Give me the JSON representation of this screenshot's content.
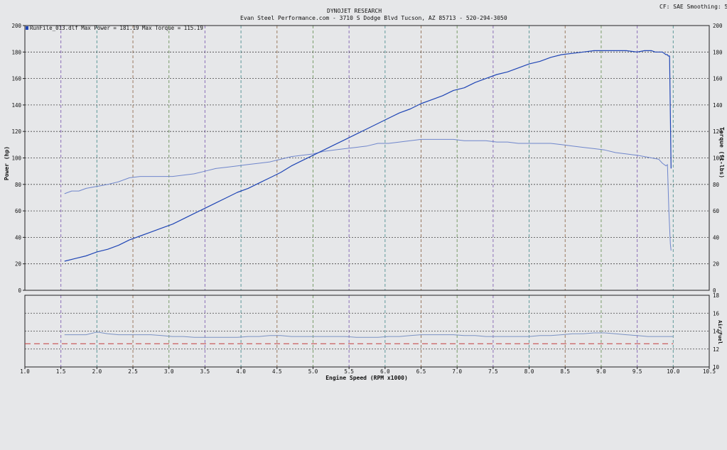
{
  "header": {
    "title": "DYNOJET RESEARCH",
    "subtitle": "Evan Steel Performance.com - 3710 S Dodge Blvd  Tucson, AZ  85713 - 520-294-3050",
    "settings": "CF: SAE   Smoothing: 5"
  },
  "legend": {
    "text": "RunFile_013.dlf Max Power = 181.19    Max Torque = 115.19"
  },
  "colors": {
    "power": "#1f45b5",
    "torque": "#6f86cc",
    "afr": "#7a92c4",
    "afr_target": "#c43c3c",
    "grid": "#444444",
    "rpm_lines": [
      "#7a9d6a",
      "#8c6fb8",
      "#5f9a9a",
      "#9a7a60"
    ]
  },
  "chart_data": [
    {
      "type": "line",
      "title": "",
      "ylabel": "Power (hp)",
      "ylabel_right": "Torque (ft-lbs)",
      "xlim": [
        1.0,
        10.5
      ],
      "ylim": [
        0,
        200
      ],
      "ylim_right": [
        0,
        200
      ],
      "x_ticks": [
        "1.0",
        "1.5",
        "2.0",
        "2.5",
        "3.0",
        "3.5",
        "4.0",
        "4.5",
        "5.0",
        "5.5",
        "6.0",
        "6.5",
        "7.0",
        "7.5",
        "8.0",
        "8.5",
        "9.0",
        "9.5",
        "10.0",
        "10.5"
      ],
      "y_ticks": [
        "0",
        "20",
        "40",
        "60",
        "80",
        "100",
        "120",
        "140",
        "160",
        "180",
        "200"
      ],
      "y_ticks_right": [
        "0",
        "20",
        "40",
        "60",
        "80",
        "100",
        "120",
        "140",
        "160",
        "180",
        "200"
      ],
      "grid": true,
      "legend_position": "top-left",
      "series": [
        {
          "name": "Power",
          "x": [
            1.55,
            1.7,
            1.85,
            2.0,
            2.15,
            2.3,
            2.45,
            2.6,
            2.75,
            2.9,
            3.05,
            3.2,
            3.35,
            3.5,
            3.65,
            3.8,
            3.95,
            4.1,
            4.25,
            4.4,
            4.55,
            4.7,
            4.85,
            5.0,
            5.15,
            5.3,
            5.45,
            5.6,
            5.75,
            5.9,
            6.05,
            6.2,
            6.35,
            6.5,
            6.65,
            6.8,
            6.95,
            7.1,
            7.25,
            7.4,
            7.55,
            7.7,
            7.85,
            8.0,
            8.15,
            8.3,
            8.45,
            8.6,
            8.75,
            8.9,
            9.05,
            9.2,
            9.35,
            9.5,
            9.6,
            9.7,
            9.75,
            9.85,
            9.9,
            9.92,
            9.93,
            9.95,
            9.97
          ],
          "y": [
            22,
            24,
            26,
            29,
            31,
            34,
            38,
            41,
            44,
            47,
            50,
            54,
            58,
            62,
            66,
            70,
            74,
            77,
            81,
            85,
            89,
            94,
            98,
            102,
            106,
            110,
            114,
            118,
            122,
            126,
            130,
            134,
            137,
            141,
            144,
            147,
            151,
            153,
            157,
            160,
            163,
            165,
            168,
            171,
            173,
            176,
            178,
            179,
            180,
            181,
            181,
            181,
            181,
            180,
            181,
            181,
            180,
            180,
            178,
            178,
            177,
            177,
            92
          ]
        },
        {
          "name": "Torque",
          "x": [
            1.55,
            1.65,
            1.75,
            1.85,
            1.95,
            2.05,
            2.15,
            2.3,
            2.45,
            2.6,
            2.75,
            2.9,
            3.05,
            3.2,
            3.35,
            3.5,
            3.65,
            3.8,
            3.95,
            4.1,
            4.25,
            4.4,
            4.55,
            4.7,
            4.85,
            5.0,
            5.15,
            5.3,
            5.45,
            5.6,
            5.75,
            5.9,
            6.05,
            6.2,
            6.35,
            6.5,
            6.65,
            6.8,
            6.95,
            7.1,
            7.25,
            7.4,
            7.55,
            7.7,
            7.85,
            8.0,
            8.15,
            8.3,
            8.45,
            8.6,
            8.75,
            8.9,
            9.05,
            9.2,
            9.35,
            9.5,
            9.6,
            9.7,
            9.8,
            9.85,
            9.9,
            9.92,
            9.94,
            9.96,
            9.97
          ],
          "y": [
            73,
            75,
            75,
            77,
            78,
            79,
            80,
            82,
            85,
            86,
            86,
            86,
            86,
            87,
            88,
            90,
            92,
            93,
            94,
            95,
            96,
            97,
            99,
            101,
            102,
            103,
            105,
            106,
            107,
            108,
            109,
            111,
            111,
            112,
            113,
            114,
            114,
            114,
            114,
            113,
            113,
            113,
            112,
            112,
            111,
            111,
            111,
            111,
            110,
            109,
            108,
            107,
            106,
            104,
            103,
            102,
            101,
            100,
            99,
            96,
            94,
            95,
            60,
            35,
            30
          ]
        }
      ]
    },
    {
      "type": "line",
      "title": "",
      "xlabel": "Engine Speed (RPM x1000)",
      "ylabel": "",
      "ylabel_right": "Air/Fuel",
      "xlim": [
        1.0,
        10.5
      ],
      "ylim": [
        10,
        18
      ],
      "y_ticks_right": [
        "10",
        "12",
        "14",
        "16",
        "18"
      ],
      "grid": true,
      "series": [
        {
          "name": "Air/Fuel",
          "x": [
            1.55,
            1.7,
            1.85,
            2.0,
            2.15,
            2.3,
            2.45,
            2.6,
            2.75,
            2.9,
            3.05,
            3.2,
            3.35,
            3.5,
            3.65,
            3.8,
            3.95,
            4.1,
            4.25,
            4.4,
            4.55,
            4.7,
            4.85,
            5.0,
            5.15,
            5.3,
            5.45,
            5.6,
            5.75,
            5.9,
            6.05,
            6.2,
            6.35,
            6.5,
            6.65,
            6.8,
            6.95,
            7.1,
            7.25,
            7.4,
            7.55,
            7.7,
            7.85,
            8.0,
            8.15,
            8.3,
            8.45,
            8.6,
            8.75,
            8.9,
            9.05,
            9.2,
            9.35,
            9.5,
            9.65,
            9.8,
            9.95,
            10.0
          ],
          "y": [
            13.6,
            13.6,
            13.6,
            13.9,
            13.7,
            13.6,
            13.6,
            13.6,
            13.6,
            13.5,
            13.4,
            13.4,
            13.3,
            13.3,
            13.3,
            13.3,
            13.3,
            13.4,
            13.4,
            13.5,
            13.5,
            13.4,
            13.4,
            13.4,
            13.4,
            13.4,
            13.4,
            13.3,
            13.3,
            13.3,
            13.4,
            13.4,
            13.5,
            13.6,
            13.6,
            13.6,
            13.6,
            13.5,
            13.5,
            13.4,
            13.4,
            13.4,
            13.4,
            13.4,
            13.5,
            13.5,
            13.6,
            13.7,
            13.7,
            13.8,
            13.8,
            13.7,
            13.6,
            13.5,
            13.4,
            13.4,
            13.4,
            13.4
          ]
        },
        {
          "name": "AFR target",
          "x": [
            1.0,
            10.0
          ],
          "y": [
            12.6,
            12.6
          ]
        }
      ]
    }
  ]
}
